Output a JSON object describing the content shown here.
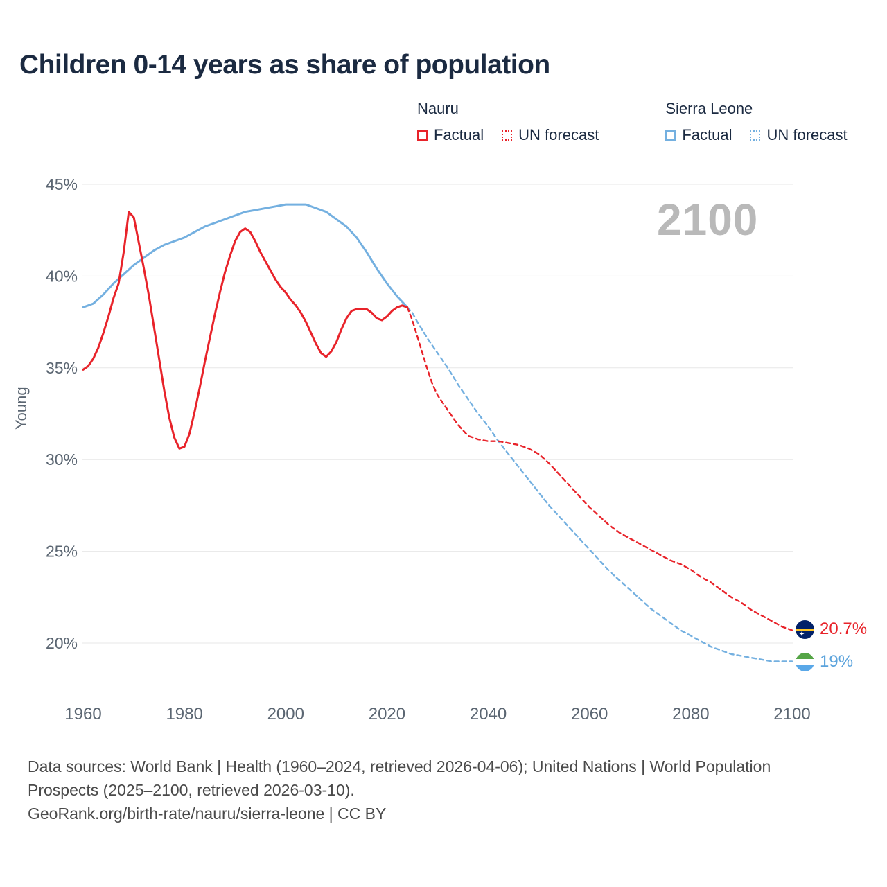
{
  "title": "Children 0-14 years as share of population",
  "watermark": "2100",
  "ylabel": "Young",
  "colors": {
    "nauru": "#e8232a",
    "sierra": "#74b0e0",
    "grid": "#e7e7e7",
    "tick_text": "#5b6672"
  },
  "legend": {
    "groups": [
      {
        "name": "Nauru",
        "items": [
          {
            "label": "Factual",
            "style": "solid"
          },
          {
            "label": "UN forecast",
            "style": "dashed"
          }
        ]
      },
      {
        "name": "Sierra Leone",
        "items": [
          {
            "label": "Factual",
            "style": "solid"
          },
          {
            "label": "UN forecast",
            "style": "dashed"
          }
        ]
      }
    ]
  },
  "end_labels": {
    "nauru": {
      "value": "20.7%",
      "flag_icon": "nauru-flag-icon"
    },
    "sierra": {
      "value": "19%",
      "flag_icon": "sierra-leone-flag-icon"
    }
  },
  "footer": {
    "line1": "Data sources: World Bank | Health (1960–2024, retrieved 2026-04-06); United Nations | World Population Prospects (2025–2100, retrieved 2026-03-10).",
    "line2": "GeoRank.org/birth-rate/nauru/sierra-leone | CC BY"
  },
  "chart_data": {
    "type": "line",
    "title": "Children 0-14 years as share of population",
    "xlabel": "",
    "ylabel": "Young",
    "xlim": [
      1960,
      2100
    ],
    "ylim": [
      19,
      45
    ],
    "x_ticks": [
      1960,
      1980,
      2000,
      2020,
      2040,
      2060,
      2080,
      2100
    ],
    "y_ticks": [
      45,
      40,
      35,
      30,
      25,
      20
    ],
    "y_tick_suffix": "%",
    "grid": "horizontal",
    "legend_position": "top-right",
    "series": [
      {
        "name": "Sierra Leone Factual",
        "color_key": "sierra",
        "style": "solid",
        "points": [
          [
            1960,
            38.3
          ],
          [
            1962,
            38.5
          ],
          [
            1964,
            39.0
          ],
          [
            1966,
            39.6
          ],
          [
            1968,
            40.1
          ],
          [
            1970,
            40.6
          ],
          [
            1972,
            41.0
          ],
          [
            1974,
            41.4
          ],
          [
            1976,
            41.7
          ],
          [
            1978,
            41.9
          ],
          [
            1980,
            42.1
          ],
          [
            1982,
            42.4
          ],
          [
            1984,
            42.7
          ],
          [
            1986,
            42.9
          ],
          [
            1988,
            43.1
          ],
          [
            1990,
            43.3
          ],
          [
            1992,
            43.5
          ],
          [
            1994,
            43.6
          ],
          [
            1996,
            43.7
          ],
          [
            1998,
            43.8
          ],
          [
            2000,
            43.9
          ],
          [
            2002,
            43.9
          ],
          [
            2004,
            43.9
          ],
          [
            2006,
            43.7
          ],
          [
            2008,
            43.5
          ],
          [
            2010,
            43.1
          ],
          [
            2012,
            42.7
          ],
          [
            2014,
            42.1
          ],
          [
            2016,
            41.3
          ],
          [
            2018,
            40.4
          ],
          [
            2020,
            39.6
          ],
          [
            2022,
            38.9
          ],
          [
            2024,
            38.3
          ]
        ]
      },
      {
        "name": "Sierra Leone UN forecast",
        "color_key": "sierra",
        "style": "dashed",
        "points": [
          [
            2024,
            38.3
          ],
          [
            2025,
            38.0
          ],
          [
            2026,
            37.5
          ],
          [
            2028,
            36.6
          ],
          [
            2030,
            35.8
          ],
          [
            2032,
            35.0
          ],
          [
            2034,
            34.1
          ],
          [
            2036,
            33.3
          ],
          [
            2038,
            32.5
          ],
          [
            2040,
            31.8
          ],
          [
            2042,
            31.0
          ],
          [
            2044,
            30.3
          ],
          [
            2046,
            29.6
          ],
          [
            2048,
            28.9
          ],
          [
            2050,
            28.2
          ],
          [
            2052,
            27.5
          ],
          [
            2054,
            26.9
          ],
          [
            2056,
            26.3
          ],
          [
            2058,
            25.7
          ],
          [
            2060,
            25.1
          ],
          [
            2062,
            24.5
          ],
          [
            2064,
            23.9
          ],
          [
            2066,
            23.4
          ],
          [
            2068,
            22.9
          ],
          [
            2070,
            22.4
          ],
          [
            2072,
            21.9
          ],
          [
            2074,
            21.5
          ],
          [
            2076,
            21.1
          ],
          [
            2078,
            20.7
          ],
          [
            2080,
            20.4
          ],
          [
            2082,
            20.1
          ],
          [
            2084,
            19.8
          ],
          [
            2086,
            19.6
          ],
          [
            2088,
            19.4
          ],
          [
            2090,
            19.3
          ],
          [
            2092,
            19.2
          ],
          [
            2094,
            19.1
          ],
          [
            2096,
            19.0
          ],
          [
            2098,
            19.0
          ],
          [
            2100,
            19.0
          ]
        ]
      },
      {
        "name": "Nauru Factual",
        "color_key": "nauru",
        "style": "solid",
        "points": [
          [
            1960,
            34.9
          ],
          [
            1961,
            35.1
          ],
          [
            1962,
            35.5
          ],
          [
            1963,
            36.1
          ],
          [
            1964,
            36.9
          ],
          [
            1965,
            37.8
          ],
          [
            1966,
            38.8
          ],
          [
            1967,
            39.6
          ],
          [
            1968,
            41.3
          ],
          [
            1969,
            43.5
          ],
          [
            1970,
            43.2
          ],
          [
            1971,
            41.8
          ],
          [
            1972,
            40.4
          ],
          [
            1973,
            38.9
          ],
          [
            1974,
            37.2
          ],
          [
            1975,
            35.5
          ],
          [
            1976,
            33.8
          ],
          [
            1977,
            32.3
          ],
          [
            1978,
            31.2
          ],
          [
            1979,
            30.6
          ],
          [
            1980,
            30.7
          ],
          [
            1981,
            31.4
          ],
          [
            1982,
            32.6
          ],
          [
            1983,
            33.9
          ],
          [
            1984,
            35.3
          ],
          [
            1985,
            36.6
          ],
          [
            1986,
            37.9
          ],
          [
            1987,
            39.1
          ],
          [
            1988,
            40.2
          ],
          [
            1989,
            41.1
          ],
          [
            1990,
            41.9
          ],
          [
            1991,
            42.4
          ],
          [
            1992,
            42.6
          ],
          [
            1993,
            42.4
          ],
          [
            1994,
            41.9
          ],
          [
            1995,
            41.3
          ],
          [
            1996,
            40.8
          ],
          [
            1997,
            40.3
          ],
          [
            1998,
            39.8
          ],
          [
            1999,
            39.4
          ],
          [
            2000,
            39.1
          ],
          [
            2001,
            38.7
          ],
          [
            2002,
            38.4
          ],
          [
            2003,
            38.0
          ],
          [
            2004,
            37.5
          ],
          [
            2005,
            36.9
          ],
          [
            2006,
            36.3
          ],
          [
            2007,
            35.8
          ],
          [
            2008,
            35.6
          ],
          [
            2009,
            35.9
          ],
          [
            2010,
            36.4
          ],
          [
            2011,
            37.1
          ],
          [
            2012,
            37.7
          ],
          [
            2013,
            38.1
          ],
          [
            2014,
            38.2
          ],
          [
            2015,
            38.2
          ],
          [
            2016,
            38.2
          ],
          [
            2017,
            38.0
          ],
          [
            2018,
            37.7
          ],
          [
            2019,
            37.6
          ],
          [
            2020,
            37.8
          ],
          [
            2021,
            38.1
          ],
          [
            2022,
            38.3
          ],
          [
            2023,
            38.4
          ],
          [
            2024,
            38.3
          ]
        ]
      },
      {
        "name": "Nauru UN forecast",
        "color_key": "nauru",
        "style": "dashed",
        "points": [
          [
            2024,
            38.3
          ],
          [
            2025,
            37.6
          ],
          [
            2026,
            36.7
          ],
          [
            2027,
            35.8
          ],
          [
            2028,
            34.9
          ],
          [
            2029,
            34.1
          ],
          [
            2030,
            33.5
          ],
          [
            2031,
            33.1
          ],
          [
            2032,
            32.7
          ],
          [
            2033,
            32.3
          ],
          [
            2034,
            31.9
          ],
          [
            2035,
            31.6
          ],
          [
            2036,
            31.3
          ],
          [
            2037,
            31.2
          ],
          [
            2038,
            31.1
          ],
          [
            2040,
            31.0
          ],
          [
            2042,
            31.0
          ],
          [
            2044,
            30.9
          ],
          [
            2046,
            30.8
          ],
          [
            2048,
            30.6
          ],
          [
            2050,
            30.3
          ],
          [
            2052,
            29.8
          ],
          [
            2054,
            29.2
          ],
          [
            2056,
            28.6
          ],
          [
            2058,
            28.0
          ],
          [
            2060,
            27.4
          ],
          [
            2062,
            26.9
          ],
          [
            2064,
            26.4
          ],
          [
            2066,
            26.0
          ],
          [
            2068,
            25.7
          ],
          [
            2070,
            25.4
          ],
          [
            2072,
            25.1
          ],
          [
            2074,
            24.8
          ],
          [
            2076,
            24.5
          ],
          [
            2078,
            24.3
          ],
          [
            2080,
            24.0
          ],
          [
            2082,
            23.6
          ],
          [
            2084,
            23.3
          ],
          [
            2086,
            22.9
          ],
          [
            2088,
            22.5
          ],
          [
            2090,
            22.2
          ],
          [
            2092,
            21.8
          ],
          [
            2094,
            21.5
          ],
          [
            2096,
            21.2
          ],
          [
            2098,
            20.9
          ],
          [
            2100,
            20.7
          ]
        ]
      }
    ]
  }
}
